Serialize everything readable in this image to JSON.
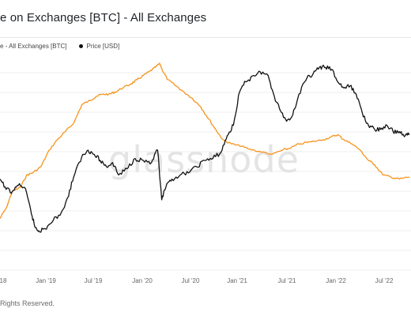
{
  "header": {
    "title": "e on Exchanges [BTC] - All Exchanges"
  },
  "footer": {
    "copyright": "Rights Reserved."
  },
  "watermark": "glassnode",
  "chart_data": {
    "type": "line",
    "x_tick_labels": [
      "18",
      "Jan '19",
      "Jul '19",
      "Jan '20",
      "Jul '20",
      "Jan '21",
      "Jul '21",
      "Jan '22",
      "Jul '22"
    ],
    "grid": "horizontal",
    "legend_position": "top-left",
    "series": [
      {
        "name": "e - All Exchanges [BTC]",
        "color": "#f7931a",
        "points": [
          [
            0.0,
            0.75
          ],
          [
            0.015,
            0.7
          ],
          [
            0.03,
            0.62
          ],
          [
            0.05,
            0.6
          ],
          [
            0.065,
            0.54
          ],
          [
            0.08,
            0.53
          ],
          [
            0.1,
            0.5
          ],
          [
            0.12,
            0.42
          ],
          [
            0.14,
            0.37
          ],
          [
            0.16,
            0.33
          ],
          [
            0.18,
            0.29
          ],
          [
            0.2,
            0.2
          ],
          [
            0.22,
            0.18
          ],
          [
            0.235,
            0.16
          ],
          [
            0.25,
            0.15
          ],
          [
            0.265,
            0.15
          ],
          [
            0.28,
            0.14
          ],
          [
            0.3,
            0.12
          ],
          [
            0.32,
            0.1
          ],
          [
            0.335,
            0.08
          ],
          [
            0.35,
            0.06
          ],
          [
            0.365,
            0.04
          ],
          [
            0.38,
            0.02
          ],
          [
            0.39,
            0.0
          ],
          [
            0.398,
            0.04
          ],
          [
            0.41,
            0.08
          ],
          [
            0.43,
            0.11
          ],
          [
            0.45,
            0.14
          ],
          [
            0.47,
            0.17
          ],
          [
            0.49,
            0.21
          ],
          [
            0.51,
            0.27
          ],
          [
            0.53,
            0.33
          ],
          [
            0.545,
            0.37
          ],
          [
            0.565,
            0.39
          ],
          [
            0.585,
            0.4
          ],
          [
            0.61,
            0.415
          ],
          [
            0.64,
            0.43
          ],
          [
            0.665,
            0.44
          ],
          [
            0.69,
            0.42
          ],
          [
            0.71,
            0.41
          ],
          [
            0.73,
            0.39
          ],
          [
            0.76,
            0.38
          ],
          [
            0.79,
            0.37
          ],
          [
            0.81,
            0.355
          ],
          [
            0.825,
            0.345
          ],
          [
            0.84,
            0.37
          ],
          [
            0.86,
            0.39
          ],
          [
            0.88,
            0.42
          ],
          [
            0.9,
            0.47
          ],
          [
            0.915,
            0.49
          ],
          [
            0.935,
            0.54
          ],
          [
            0.955,
            0.55
          ],
          [
            0.975,
            0.56
          ],
          [
            1.0,
            0.55
          ]
        ]
      },
      {
        "name": "Price [USD]",
        "color": "#111111",
        "points": [
          [
            0.0,
            0.56
          ],
          [
            0.015,
            0.61
          ],
          [
            0.03,
            0.62
          ],
          [
            0.045,
            0.59
          ],
          [
            0.06,
            0.6
          ],
          [
            0.075,
            0.71
          ],
          [
            0.085,
            0.79
          ],
          [
            0.095,
            0.81
          ],
          [
            0.11,
            0.8
          ],
          [
            0.13,
            0.76
          ],
          [
            0.15,
            0.72
          ],
          [
            0.165,
            0.65
          ],
          [
            0.18,
            0.55
          ],
          [
            0.2,
            0.45
          ],
          [
            0.215,
            0.42
          ],
          [
            0.23,
            0.44
          ],
          [
            0.245,
            0.47
          ],
          [
            0.26,
            0.5
          ],
          [
            0.275,
            0.48
          ],
          [
            0.29,
            0.54
          ],
          [
            0.31,
            0.51
          ],
          [
            0.33,
            0.46
          ],
          [
            0.35,
            0.47
          ],
          [
            0.37,
            0.48
          ],
          [
            0.385,
            0.42
          ],
          [
            0.395,
            0.66
          ],
          [
            0.405,
            0.6
          ],
          [
            0.42,
            0.56
          ],
          [
            0.44,
            0.54
          ],
          [
            0.46,
            0.53
          ],
          [
            0.48,
            0.5
          ],
          [
            0.5,
            0.47
          ],
          [
            0.52,
            0.46
          ],
          [
            0.54,
            0.43
          ],
          [
            0.555,
            0.35
          ],
          [
            0.57,
            0.3
          ],
          [
            0.585,
            0.14
          ],
          [
            0.6,
            0.09
          ],
          [
            0.62,
            0.06
          ],
          [
            0.635,
            0.04
          ],
          [
            0.655,
            0.06
          ],
          [
            0.67,
            0.16
          ],
          [
            0.685,
            0.23
          ],
          [
            0.7,
            0.28
          ],
          [
            0.715,
            0.25
          ],
          [
            0.73,
            0.15
          ],
          [
            0.75,
            0.07
          ],
          [
            0.765,
            0.05
          ],
          [
            0.78,
            0.02
          ],
          [
            0.795,
            0.02
          ],
          [
            0.81,
            0.03
          ],
          [
            0.825,
            0.09
          ],
          [
            0.84,
            0.12
          ],
          [
            0.855,
            0.11
          ],
          [
            0.87,
            0.15
          ],
          [
            0.885,
            0.24
          ],
          [
            0.9,
            0.3
          ],
          [
            0.915,
            0.32
          ],
          [
            0.93,
            0.32
          ],
          [
            0.945,
            0.3
          ],
          [
            0.96,
            0.33
          ],
          [
            0.975,
            0.33
          ],
          [
            0.99,
            0.35
          ],
          [
            1.0,
            0.34
          ]
        ]
      }
    ]
  }
}
